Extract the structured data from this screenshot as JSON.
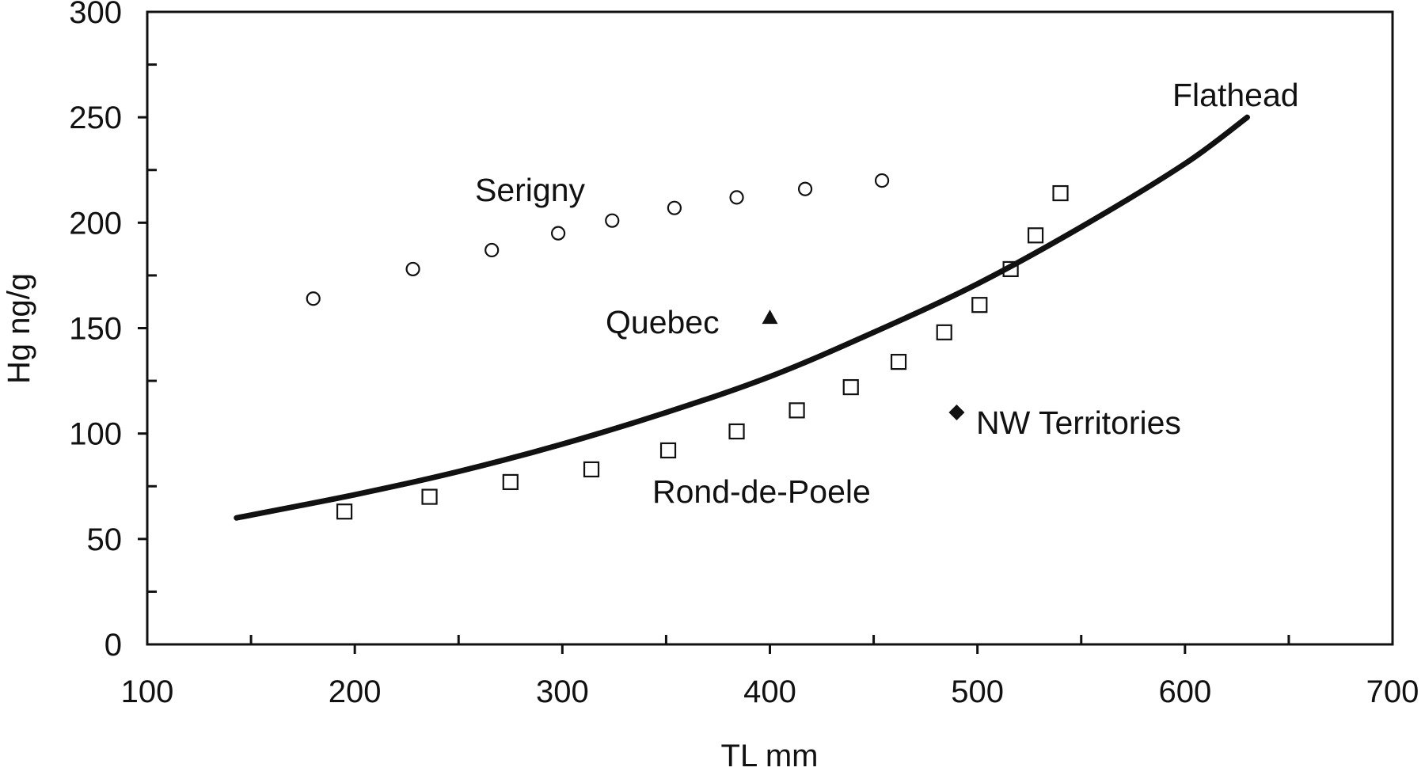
{
  "chart_data": {
    "type": "scatter",
    "title": "",
    "xlabel": "TL mm",
    "ylabel": "Hg ng/g",
    "xlim": [
      100,
      700
    ],
    "ylim": [
      0,
      300
    ],
    "x_ticks": [
      "100",
      "200",
      "300",
      "400",
      "500",
      "600",
      "700"
    ],
    "y_ticks": [
      "0",
      "50",
      "100",
      "150",
      "200",
      "250",
      "300"
    ],
    "grid": false,
    "series": [
      {
        "name": "Serigny",
        "kind": "points",
        "marker": "open-circle",
        "x": [
          180,
          228,
          266,
          298,
          324,
          354,
          384,
          417,
          454
        ],
        "y": [
          164,
          178,
          187,
          195,
          201,
          207,
          212,
          216,
          220
        ]
      },
      {
        "name": "Rond-de-Poele",
        "kind": "points",
        "marker": "open-square",
        "x": [
          195,
          236,
          275,
          314,
          351,
          384,
          413,
          439,
          462,
          484,
          501,
          516,
          528,
          540
        ],
        "y": [
          63,
          70,
          77,
          83,
          92,
          101,
          111,
          122,
          134,
          148,
          161,
          178,
          194,
          214
        ]
      },
      {
        "name": "Quebec",
        "kind": "points",
        "marker": "filled-triangle",
        "x": [
          400
        ],
        "y": [
          155
        ]
      },
      {
        "name": "NW Territories",
        "kind": "points",
        "marker": "filled-diamond",
        "x": [
          490
        ],
        "y": [
          110
        ]
      },
      {
        "name": "Flathead",
        "kind": "curve",
        "x": [
          143,
          200,
          250,
          300,
          350,
          400,
          450,
          500,
          550,
          600,
          630
        ],
        "y": [
          60,
          71,
          82,
          95,
          110,
          127,
          148,
          171,
          198,
          228,
          250
        ]
      }
    ]
  }
}
